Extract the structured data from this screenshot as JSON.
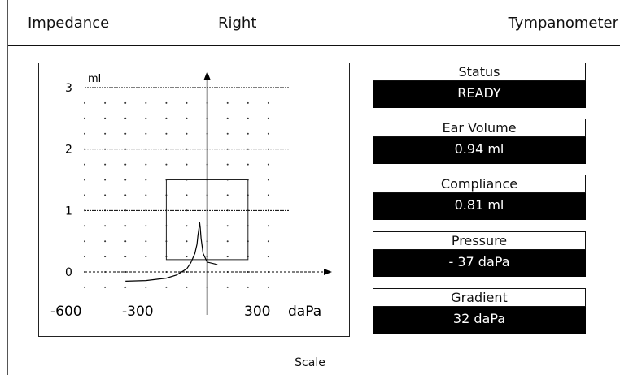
{
  "header": {
    "left_label": "Impedance",
    "middle_label": "Right",
    "right_label": "Tympanometer"
  },
  "panels": [
    {
      "label": "Status",
      "value": "READY"
    },
    {
      "label": "Ear Volume",
      "value": "0.94 ml"
    },
    {
      "label": "Compliance",
      "value": "0.81 ml"
    },
    {
      "label": "Pressure",
      "value": "- 37 daPa"
    },
    {
      "label": "Gradient",
      "value": "32 daPa"
    }
  ],
  "footer": {
    "scale_label": "Scale"
  },
  "chart_data": {
    "type": "line",
    "xlabel": "daPa",
    "ylabel": "ml",
    "xlim": [
      -600,
      400
    ],
    "ylim": [
      0,
      3
    ],
    "x_tick_labels": [
      "-600",
      "-300",
      "300"
    ],
    "y_tick_labels": [
      "0",
      "1",
      "2",
      "3"
    ],
    "grid": "dotted",
    "compliance_box": {
      "x": [
        -200,
        200
      ],
      "y": [
        0.2,
        1.5
      ]
    },
    "series": [
      {
        "x": [
          -400,
          -300,
          -200,
          -150,
          -100,
          -80,
          -60,
          -50,
          -45,
          -40,
          -37,
          -34,
          -30,
          -20,
          0,
          50
        ],
        "y": [
          -0.15,
          -0.14,
          -0.1,
          -0.05,
          0.05,
          0.15,
          0.3,
          0.45,
          0.6,
          0.72,
          0.81,
          0.72,
          0.55,
          0.3,
          0.16,
          0.12
        ]
      }
    ]
  }
}
